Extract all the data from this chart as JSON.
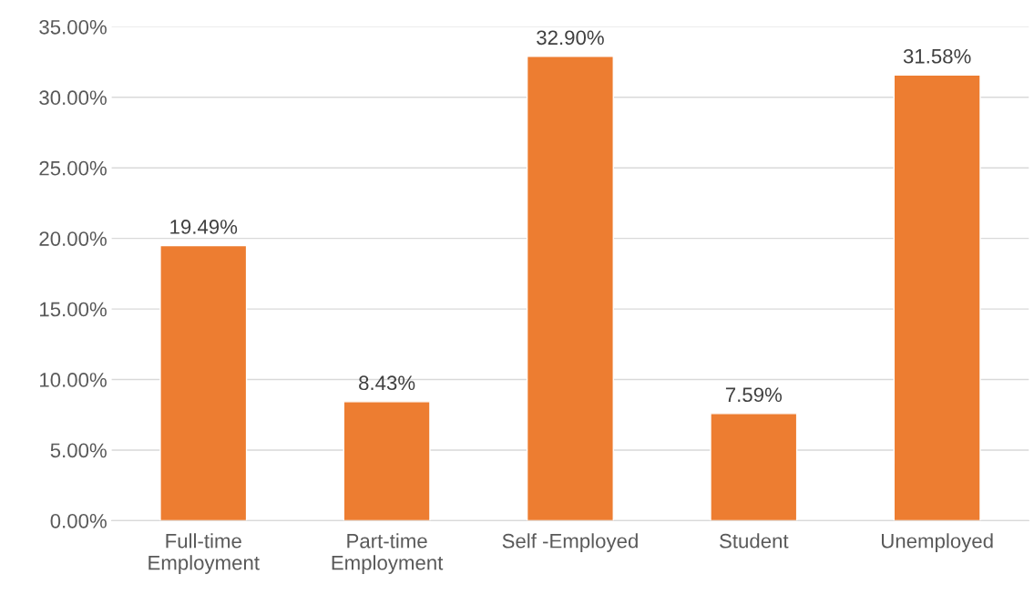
{
  "chart_data": {
    "type": "bar",
    "categories": [
      "Full-time\nEmployment",
      "Part-time\nEmployment",
      "Self -Employed",
      "Student",
      "Unemployed"
    ],
    "values": [
      19.49,
      8.43,
      32.9,
      7.59,
      31.58
    ],
    "value_labels": [
      "19.49%",
      "8.43%",
      "32.90%",
      "7.59%",
      "31.58%"
    ],
    "color": "#ed7d31",
    "ylim": [
      0,
      35
    ],
    "yticks": [
      {
        "value": 0,
        "label": "0.00%"
      },
      {
        "value": 5,
        "label": "5.00%"
      },
      {
        "value": 10,
        "label": "10.00%"
      },
      {
        "value": 15,
        "label": "15.00%"
      },
      {
        "value": 20,
        "label": "20.00%"
      },
      {
        "value": 25,
        "label": "25.00%"
      },
      {
        "value": 30,
        "label": "30.00%"
      },
      {
        "value": 35,
        "label": "35.00%"
      }
    ],
    "grid": "y",
    "legend": false
  }
}
